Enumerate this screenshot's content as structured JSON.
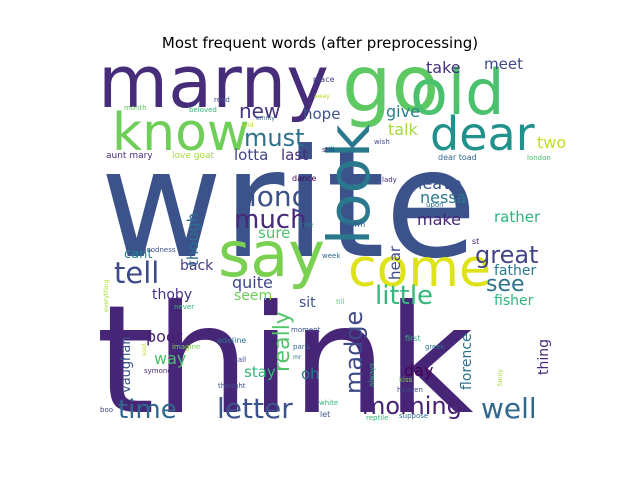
{
  "chart_data": {
    "type": "wordcloud",
    "title": "Most frequent words (after preprocessing)",
    "words": [
      {
        "text": "write",
        "weight": 100,
        "color": "#3b528b"
      },
      {
        "text": "think",
        "weight": 98,
        "color": "#482677"
      },
      {
        "text": "marny",
        "weight": 60,
        "color": "#472c7a"
      },
      {
        "text": "go",
        "weight": 55,
        "color": "#5ec962"
      },
      {
        "text": "old",
        "weight": 50,
        "color": "#4ac16d"
      },
      {
        "text": "know",
        "weight": 48,
        "color": "#6ece58"
      },
      {
        "text": "look",
        "weight": 46,
        "color": "#2a788e"
      },
      {
        "text": "say",
        "weight": 46,
        "color": "#7ad151"
      },
      {
        "text": "dear",
        "weight": 42,
        "color": "#21918c"
      },
      {
        "text": "come",
        "weight": 42,
        "color": "#dde318"
      },
      {
        "text": "long",
        "weight": 26,
        "color": "#3b528b"
      },
      {
        "text": "tell",
        "weight": 26,
        "color": "#3e4989"
      },
      {
        "text": "much",
        "weight": 24,
        "color": "#482878"
      },
      {
        "text": "must",
        "weight": 22,
        "color": "#2d708e"
      },
      {
        "text": "great",
        "weight": 22,
        "color": "#414487"
      },
      {
        "text": "little",
        "weight": 24,
        "color": "#35b779"
      },
      {
        "text": "letter",
        "weight": 26,
        "color": "#3b528b"
      },
      {
        "text": "time",
        "weight": 24,
        "color": "#31688e"
      },
      {
        "text": "morning",
        "weight": 22,
        "color": "#482173"
      },
      {
        "text": "well",
        "weight": 26,
        "color": "#31688e"
      },
      {
        "text": "madge",
        "weight": 20,
        "color": "#3e4a89"
      },
      {
        "text": "really",
        "weight": 20,
        "color": "#52c569"
      },
      {
        "text": "new",
        "weight": 18,
        "color": "#46337e"
      },
      {
        "text": "see",
        "weight": 20,
        "color": "#2c728e"
      },
      {
        "text": "two",
        "weight": 16,
        "color": "#bddf26"
      },
      {
        "text": "meet",
        "weight": 14,
        "color": "#3e4989"
      },
      {
        "text": "take",
        "weight": 15,
        "color": "#46327e"
      },
      {
        "text": "give",
        "weight": 15,
        "color": "#277f8e"
      },
      {
        "text": "hope",
        "weight": 14,
        "color": "#3b528b"
      },
      {
        "text": "talk",
        "weight": 15,
        "color": "#a5db36"
      },
      {
        "text": "lotta",
        "weight": 14,
        "color": "#404387"
      },
      {
        "text": "last",
        "weight": 14,
        "color": "#472d7b"
      },
      {
        "text": "leave",
        "weight": 14,
        "color": "#3a548c"
      },
      {
        "text": "nessa",
        "weight": 14,
        "color": "#2a788e"
      },
      {
        "text": "make",
        "weight": 14,
        "color": "#482677"
      },
      {
        "text": "rather",
        "weight": 14,
        "color": "#2fb47c"
      },
      {
        "text": "though",
        "weight": 14,
        "color": "#2e6e8e"
      },
      {
        "text": "sure",
        "weight": 14,
        "color": "#4ac16d"
      },
      {
        "text": "hear",
        "weight": 14,
        "color": "#3e4989"
      },
      {
        "text": "cant",
        "weight": 12,
        "color": "#26828e"
      },
      {
        "text": "back",
        "weight": 13,
        "color": "#433e85"
      },
      {
        "text": "quite",
        "weight": 15,
        "color": "#3f4788"
      },
      {
        "text": "seem",
        "weight": 13,
        "color": "#6ece58"
      },
      {
        "text": "father",
        "weight": 13,
        "color": "#2a788e"
      },
      {
        "text": "fisher",
        "weight": 13,
        "color": "#2fb47c"
      },
      {
        "text": "thoby",
        "weight": 13,
        "color": "#46327e"
      },
      {
        "text": "sit",
        "weight": 13,
        "color": "#3b528b"
      },
      {
        "text": "poor",
        "weight": 14,
        "color": "#481f70"
      },
      {
        "text": "way",
        "weight": 14,
        "color": "#4ac16d"
      },
      {
        "text": "vaughan",
        "weight": 12,
        "color": "#3b528b"
      },
      {
        "text": "stay",
        "weight": 13,
        "color": "#35b779"
      },
      {
        "text": "oh",
        "weight": 13,
        "color": "#2a788e"
      },
      {
        "text": "day",
        "weight": 14,
        "color": "#440154"
      },
      {
        "text": "florence",
        "weight": 13,
        "color": "#2c728e"
      },
      {
        "text": "thing",
        "weight": 13,
        "color": "#472a7a"
      },
      {
        "text": "aunt mary",
        "weight": 8,
        "color": "#472c7a"
      },
      {
        "text": "love goat",
        "weight": 8,
        "color": "#a5db36"
      },
      {
        "text": "dear toad",
        "weight": 7,
        "color": "#31688e"
      },
      {
        "text": "london",
        "weight": 6,
        "color": "#48c16e"
      },
      {
        "text": "place",
        "weight": 7,
        "color": "#414487"
      },
      {
        "text": "month",
        "weight": 6,
        "color": "#5ec962"
      },
      {
        "text": "beloved",
        "weight": 6,
        "color": "#35b779"
      },
      {
        "text": "read",
        "weight": 6,
        "color": "#3b528b"
      },
      {
        "text": "emmy",
        "weight": 5,
        "color": "#31688e"
      },
      {
        "text": "end",
        "weight": 5,
        "color": "#b5de2b"
      },
      {
        "text": "away",
        "weight": 5,
        "color": "#b5de2b"
      },
      {
        "text": "still",
        "weight": 6,
        "color": "#46327e"
      },
      {
        "text": "wish",
        "weight": 6,
        "color": "#3e4989"
      },
      {
        "text": "vanessa",
        "weight": 5,
        "color": "#5ec962"
      },
      {
        "text": "dance",
        "weight": 7,
        "color": "#440154"
      },
      {
        "text": "lady",
        "weight": 6,
        "color": "#472a7a"
      },
      {
        "text": "upon",
        "weight": 6,
        "color": "#2c728e"
      },
      {
        "text": "lose",
        "weight": 6,
        "color": "#2a788e"
      },
      {
        "text": "charm",
        "weight": 7,
        "color": "#3b528b"
      },
      {
        "text": "goodness",
        "weight": 6,
        "color": "#3b528b"
      },
      {
        "text": "week",
        "weight": 6,
        "color": "#31688e"
      },
      {
        "text": "st",
        "weight": 7,
        "color": "#481f70"
      },
      {
        "text": "till",
        "weight": 6,
        "color": "#6ece58"
      },
      {
        "text": "everything",
        "weight": 5,
        "color": "#a5db36"
      },
      {
        "text": "never",
        "weight": 6,
        "color": "#35b779"
      },
      {
        "text": "moment",
        "weight": 6,
        "color": "#3b528b"
      },
      {
        "text": "paris",
        "weight": 6,
        "color": "#31688e"
      },
      {
        "text": "mr",
        "weight": 5,
        "color": "#2c728e"
      },
      {
        "text": "adeline",
        "weight": 7,
        "color": "#2c728e"
      },
      {
        "text": "imagine",
        "weight": 6,
        "color": "#7ad151"
      },
      {
        "text": "call",
        "weight": 6,
        "color": "#3e4989"
      },
      {
        "text": "symonds",
        "weight": 6,
        "color": "#472c7a"
      },
      {
        "text": "thought",
        "weight": 6,
        "color": "#3b528b"
      },
      {
        "text": "always",
        "weight": 6,
        "color": "#35b779"
      },
      {
        "text": "first",
        "weight": 7,
        "color": "#2fb47c"
      },
      {
        "text": "greek",
        "weight": 6,
        "color": "#2c728e"
      },
      {
        "text": "kiss",
        "weight": 6,
        "color": "#7ad151"
      },
      {
        "text": "heaven",
        "weight": 6,
        "color": "#3e4989"
      },
      {
        "text": "fanny",
        "weight": 5,
        "color": "#a5db36"
      },
      {
        "text": "boo",
        "weight": 6,
        "color": "#414487"
      },
      {
        "text": "let",
        "weight": 7,
        "color": "#3b528b"
      },
      {
        "text": "white",
        "weight": 6,
        "color": "#35b779"
      },
      {
        "text": "reptile",
        "weight": 6,
        "color": "#35b779"
      },
      {
        "text": "suppose",
        "weight": 6,
        "color": "#31688e"
      },
      {
        "text": "soul",
        "weight": 5,
        "color": "#bddf26"
      }
    ]
  }
}
